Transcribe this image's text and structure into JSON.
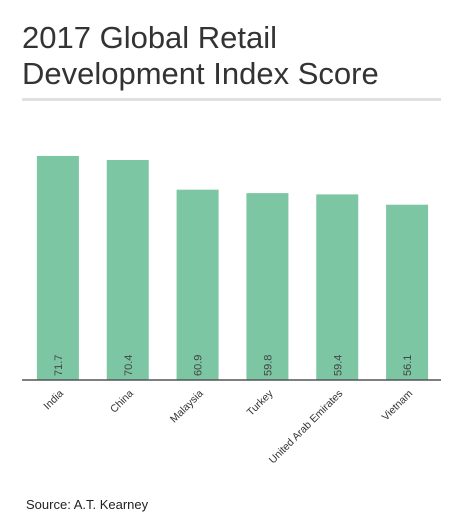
{
  "title_line1": "2017 Global Retail",
  "title_line2": "Development Index Score",
  "source": "Source:  A.T. Kearney",
  "colors": {
    "bar": "#7dc6a3",
    "axis": "#555555",
    "label_text": "#444444",
    "divider": "#e0e0e0"
  },
  "chart_data": {
    "type": "bar",
    "title": "2017 Global Retail Development Index Score",
    "categories": [
      "India",
      "China",
      "Malaysia",
      "Turkey",
      "United Arab Emirates",
      "Vietnam"
    ],
    "values": [
      71.7,
      70.4,
      60.9,
      59.8,
      59.4,
      56.1
    ],
    "value_labels": [
      "71.7",
      "70.4",
      "60.9",
      "59.8",
      "59.4",
      "56.1"
    ],
    "xlabel": "",
    "ylabel": "",
    "ylim": [
      0,
      72
    ],
    "grid": false,
    "legend": "none"
  }
}
